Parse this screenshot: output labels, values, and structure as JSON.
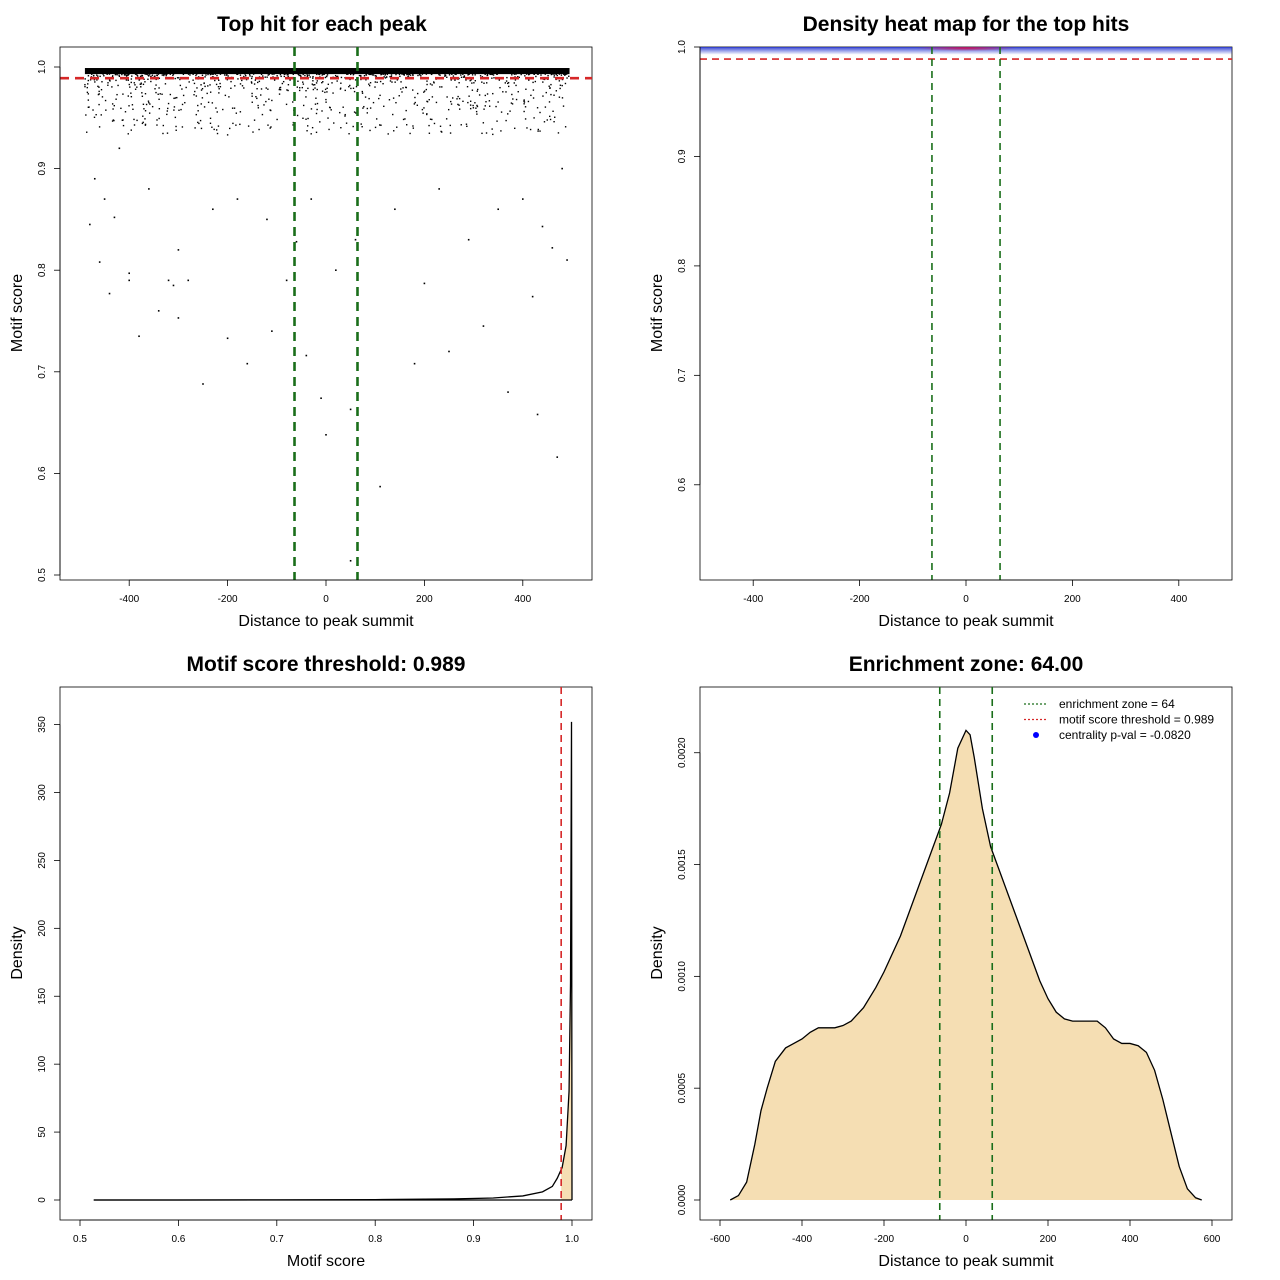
{
  "chart_data": [
    {
      "type": "scatter",
      "title": "Top hit for each peak",
      "xlabel": "Distance to peak summit",
      "ylabel": "Motif score",
      "xlim": [
        -500,
        500
      ],
      "ylim": [
        0.5,
        1.0
      ],
      "x_ticks": [
        -400,
        -200,
        0,
        200,
        400
      ],
      "y_ticks": [
        0.5,
        0.6,
        0.7,
        0.8,
        0.9,
        1.0
      ],
      "x_tick_labels": [
        "-400",
        "-200",
        "0",
        "200",
        "400"
      ],
      "y_tick_labels": [
        "0.5",
        "0.6",
        "0.7",
        "0.8",
        "0.9",
        "1.0"
      ],
      "grid": false,
      "reference_lines": [
        {
          "orientation": "horizontal",
          "value": 0.989,
          "color": "#d62728",
          "style": "dashed"
        },
        {
          "orientation": "vertical",
          "value": -64,
          "color": "#1a6e1a",
          "style": "dashed"
        },
        {
          "orientation": "vertical",
          "value": 64,
          "color": "#1a6e1a",
          "style": "dashed"
        }
      ],
      "dense_band": {
        "x": [
          -490,
          495
        ],
        "y": [
          0.993,
          0.999
        ]
      },
      "points": [
        [
          -480,
          0.845
        ],
        [
          -460,
          0.808
        ],
        [
          -440,
          0.777
        ],
        [
          -430,
          0.852
        ],
        [
          -400,
          0.797
        ],
        [
          -400,
          0.79
        ],
        [
          -380,
          0.735
        ],
        [
          -340,
          0.76
        ],
        [
          -320,
          0.79
        ],
        [
          -310,
          0.785
        ],
        [
          -300,
          0.753
        ],
        [
          -280,
          0.79
        ],
        [
          -250,
          0.688
        ],
        [
          -200,
          0.733
        ],
        [
          -160,
          0.708
        ],
        [
          -110,
          0.74
        ],
        [
          -80,
          0.79
        ],
        [
          -60,
          0.828
        ],
        [
          -40,
          0.716
        ],
        [
          -10,
          0.674
        ],
        [
          0,
          0.638
        ],
        [
          20,
          0.8
        ],
        [
          50,
          0.663
        ],
        [
          50,
          0.514
        ],
        [
          110,
          0.587
        ],
        [
          180,
          0.708
        ],
        [
          200,
          0.787
        ],
        [
          250,
          0.72
        ],
        [
          320,
          0.745
        ],
        [
          370,
          0.68
        ],
        [
          420,
          0.774
        ],
        [
          430,
          0.658
        ],
        [
          470,
          0.616
        ],
        [
          490,
          0.81
        ],
        [
          440,
          0.843
        ],
        [
          460,
          0.822
        ],
        [
          -470,
          0.89
        ],
        [
          -450,
          0.87
        ],
        [
          -420,
          0.92
        ],
        [
          -360,
          0.88
        ],
        [
          -300,
          0.82
        ],
        [
          -230,
          0.86
        ],
        [
          -180,
          0.87
        ],
        [
          -120,
          0.85
        ],
        [
          -30,
          0.87
        ],
        [
          60,
          0.83
        ],
        [
          140,
          0.86
        ],
        [
          230,
          0.88
        ],
        [
          290,
          0.83
        ],
        [
          350,
          0.86
        ],
        [
          400,
          0.87
        ],
        [
          480,
          0.9
        ]
      ]
    },
    {
      "type": "heatmap",
      "title": "Density heat map for the top hits",
      "xlabel": "Distance to peak summit",
      "ylabel": "Motif score",
      "xlim": [
        -500,
        500
      ],
      "ylim": [
        0.513,
        1.0
      ],
      "x_ticks": [
        -400,
        -200,
        0,
        200,
        400
      ],
      "y_ticks": [
        0.6,
        0.7,
        0.8,
        0.9,
        1.0
      ],
      "x_tick_labels": [
        "-400",
        "-200",
        "0",
        "200",
        "400"
      ],
      "y_tick_labels": [
        "0.6",
        "0.7",
        "0.8",
        "0.9",
        "1.0"
      ],
      "grid": false,
      "reference_lines": [
        {
          "orientation": "horizontal",
          "value": 0.989,
          "color": "#d62728",
          "style": "dashed"
        },
        {
          "orientation": "vertical",
          "value": -64,
          "color": "#1a6e1a",
          "style": "dashed"
        },
        {
          "orientation": "vertical",
          "value": 64,
          "color": "#1a6e1a",
          "style": "dashed"
        }
      ],
      "density_band": {
        "x": [
          -500,
          500
        ],
        "y": [
          0.993,
          1.0
        ],
        "peak_x": 0,
        "low_color": "#2030d0",
        "high_color": "#d01050"
      }
    },
    {
      "type": "area",
      "title": "Motif score threshold: 0.989",
      "xlabel": "Motif score",
      "ylabel": "Density",
      "xlim": [
        0.5,
        1.0
      ],
      "ylim": [
        0,
        360
      ],
      "x_ticks": [
        0.5,
        0.6,
        0.7,
        0.8,
        0.9,
        1.0
      ],
      "y_ticks": [
        0,
        50,
        100,
        150,
        200,
        250,
        300,
        350
      ],
      "x_tick_labels": [
        "0.5",
        "0.6",
        "0.7",
        "0.8",
        "0.9",
        "1.0"
      ],
      "y_tick_labels": [
        "0",
        "50",
        "100",
        "150",
        "200",
        "250",
        "300",
        "350"
      ],
      "grid": false,
      "fill_color": "#f5deb3",
      "fill_from": 0.989,
      "reference_lines": [
        {
          "orientation": "vertical",
          "value": 0.989,
          "color": "#d62728",
          "style": "dashed"
        }
      ],
      "x": [
        0.514,
        0.6,
        0.7,
        0.8,
        0.88,
        0.92,
        0.95,
        0.97,
        0.98,
        0.985,
        0.99,
        0.994,
        0.997,
        0.9985,
        0.9995,
        1.0
      ],
      "y": [
        0,
        0,
        0.1,
        0.3,
        0.8,
        1.5,
        3,
        6,
        10,
        16,
        24,
        40,
        80,
        160,
        352,
        0
      ]
    },
    {
      "type": "area",
      "title": "Enrichment zone: 64.00",
      "xlabel": "Distance to peak summit",
      "ylabel": "Density",
      "xlim": [
        -600,
        600
      ],
      "ylim": [
        0,
        0.0022
      ],
      "x_ticks": [
        -600,
        -400,
        -200,
        0,
        200,
        400,
        600
      ],
      "y_ticks": [
        0.0,
        0.0005,
        0.001,
        0.0015,
        0.002
      ],
      "x_tick_labels": [
        "-600",
        "-400",
        "-200",
        "0",
        "200",
        "400",
        "600"
      ],
      "y_tick_labels": [
        "0.0000",
        "0.0005",
        "0.0010",
        "0.0015",
        "0.0020"
      ],
      "grid": false,
      "fill_color": "#f5deb3",
      "reference_lines": [
        {
          "orientation": "vertical",
          "value": -64,
          "color": "#1a6e1a",
          "style": "dashed"
        },
        {
          "orientation": "vertical",
          "value": 64,
          "color": "#1a6e1a",
          "style": "dashed"
        }
      ],
      "x": [
        -575,
        -555,
        -535,
        -515,
        -500,
        -485,
        -465,
        -440,
        -420,
        -400,
        -380,
        -360,
        -340,
        -320,
        -300,
        -280,
        -250,
        -220,
        -200,
        -180,
        -160,
        -140,
        -120,
        -100,
        -80,
        -60,
        -40,
        -20,
        0,
        10,
        20,
        40,
        60,
        80,
        100,
        120,
        140,
        160,
        180,
        200,
        220,
        240,
        260,
        280,
        300,
        320,
        340,
        360,
        380,
        400,
        420,
        440,
        460,
        480,
        500,
        520,
        540,
        560,
        575
      ],
      "y": [
        0.0,
        2e-05,
        8e-05,
        0.00025,
        0.0004,
        0.0005,
        0.00062,
        0.00068,
        0.0007,
        0.00072,
        0.00075,
        0.00077,
        0.00077,
        0.00077,
        0.00078,
        0.0008,
        0.00086,
        0.00095,
        0.00102,
        0.0011,
        0.00118,
        0.00128,
        0.00138,
        0.00148,
        0.00158,
        0.00168,
        0.00182,
        0.00202,
        0.0021,
        0.00208,
        0.00198,
        0.00175,
        0.00158,
        0.00148,
        0.00138,
        0.00128,
        0.00118,
        0.00108,
        0.00098,
        0.0009,
        0.00084,
        0.00081,
        0.0008,
        0.0008,
        0.0008,
        0.0008,
        0.00077,
        0.00072,
        0.0007,
        0.0007,
        0.00069,
        0.00066,
        0.00058,
        0.00045,
        0.0003,
        0.00015,
        5e-05,
        1e-05,
        0.0
      ],
      "legend_placement": "top-right",
      "legend": [
        {
          "label": "enrichment zone = 64",
          "color": "#1a6e1a",
          "marker": "dotted-line"
        },
        {
          "label": "motif score threshold = 0.989",
          "color": "#d62728",
          "marker": "dotted-line"
        },
        {
          "label": "centrality p-val = -0.0820",
          "color": "#0000ff",
          "marker": "point"
        }
      ]
    }
  ]
}
